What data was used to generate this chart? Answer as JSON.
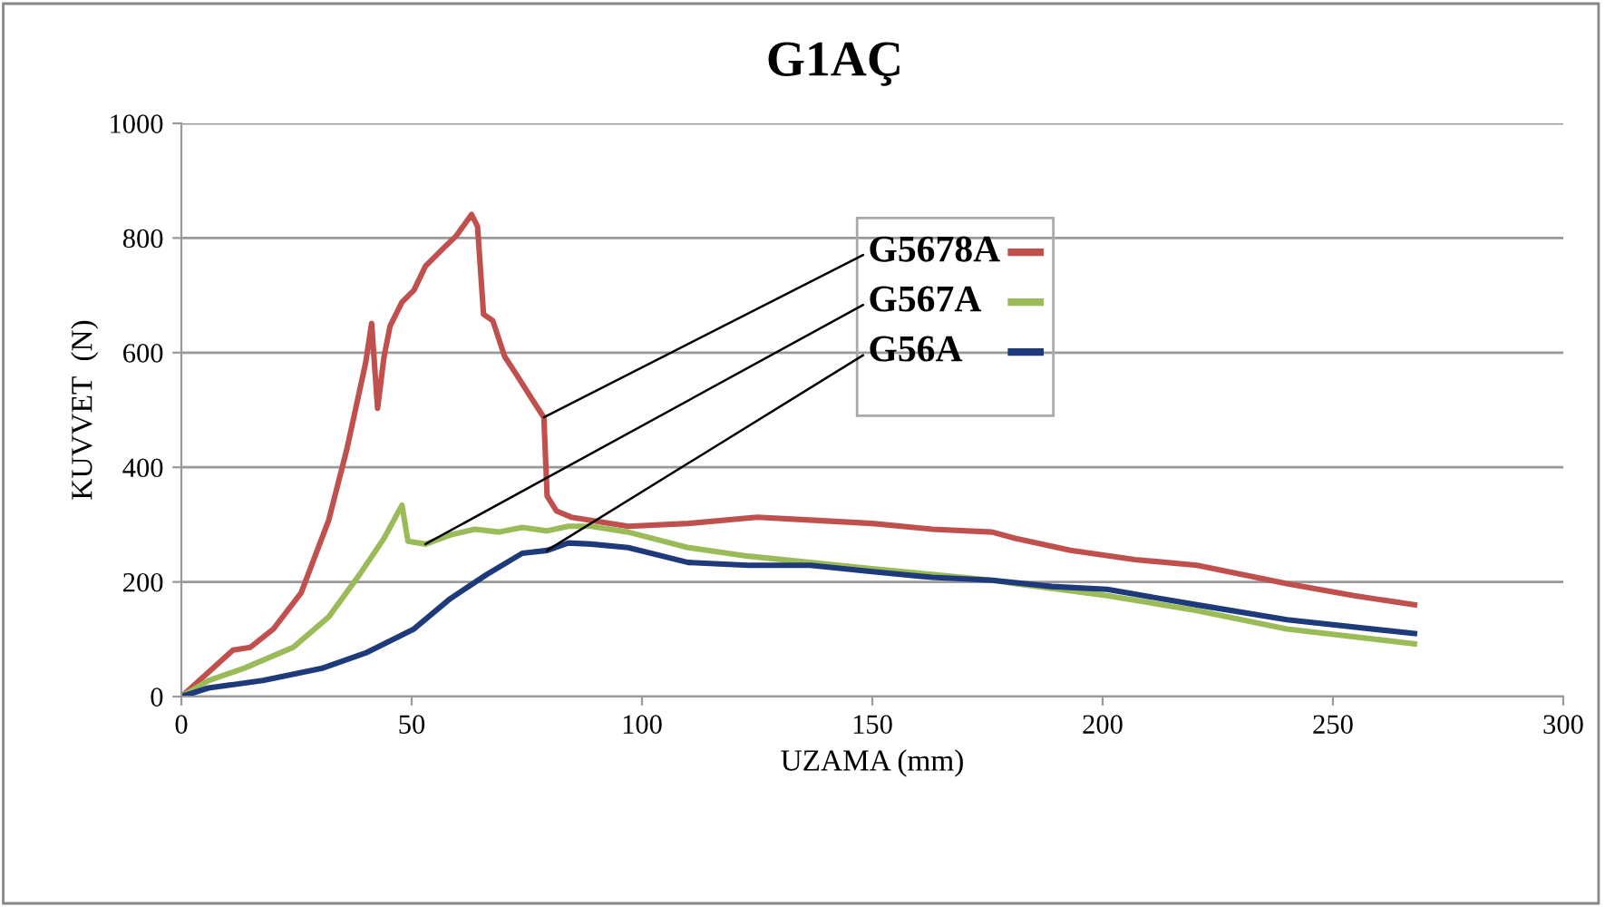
{
  "chart_data": {
    "type": "line",
    "title": "G1AÇ",
    "xlabel": "UZAMA (mm)",
    "ylabel": "KUVVET  (N)",
    "xlim": [
      0,
      300
    ],
    "xticks": [
      0,
      50,
      100,
      150,
      200,
      250,
      300
    ],
    "ylim": [
      0,
      1000
    ],
    "yticks": [
      0,
      200,
      400,
      600,
      800,
      1000
    ],
    "grid": "y",
    "legend": "top",
    "marker": "none",
    "line_style": "solid",
    "series": [
      {
        "name": "G5678A",
        "color": "#c0504d",
        "x": [
          0,
          11.2,
          15,
          20,
          26,
          32,
          36,
          40,
          41.3,
          42.6,
          44,
          45.3,
          47.9,
          50.5,
          53,
          57,
          59.7,
          63,
          64.3,
          65.6,
          67.6,
          70.2,
          72.8,
          76.1,
          78.7,
          79.4,
          81.4,
          84.6,
          97,
          110,
          125,
          136.5,
          150,
          163,
          176,
          181,
          193,
          207,
          220.5,
          240,
          254.6,
          267.7
        ],
        "values": [
          0,
          81,
          86,
          118,
          181,
          308,
          434,
          582,
          651,
          503,
          593,
          646,
          688,
          709,
          751,
          783,
          804,
          841,
          820,
          667,
          656,
          593,
          561,
          519,
          487,
          350,
          324,
          313,
          297,
          302,
          313,
          308,
          302,
          292,
          287,
          276,
          255,
          239,
          229,
          197,
          176,
          160
        ]
      },
      {
        "name": "G567A",
        "color": "#9bbb59",
        "x": [
          0,
          5.9,
          13.8,
          24.3,
          32,
          38.7,
          44,
          47.9,
          49.2,
          53,
          58.4,
          63.7,
          69,
          74,
          79.4,
          84,
          89,
          97,
          110,
          123,
          136.5,
          150,
          163,
          176,
          181,
          201,
          220.5,
          240,
          267.7
        ],
        "values": [
          0,
          28,
          50,
          86,
          139,
          213,
          276,
          334,
          271,
          266,
          282,
          292,
          287,
          295,
          289,
          297,
          297,
          287,
          260,
          245,
          234,
          223,
          213,
          203,
          197,
          176,
          150,
          118,
          92
        ]
      },
      {
        "name": "G56A",
        "color": "#1f3a7a",
        "x": [
          0,
          5.9,
          17.7,
          30.8,
          40,
          50.5,
          58.4,
          66.3,
          74,
          79.4,
          84,
          89,
          97,
          110,
          123,
          136.5,
          150,
          163,
          176,
          189,
          201,
          220.5,
          240,
          267.7
        ],
        "values": [
          0,
          15,
          28,
          50,
          76,
          118,
          171,
          213,
          250,
          255,
          268,
          266,
          260,
          234,
          229,
          229,
          218,
          208,
          203,
          192,
          187,
          160,
          134,
          110
        ]
      }
    ]
  }
}
